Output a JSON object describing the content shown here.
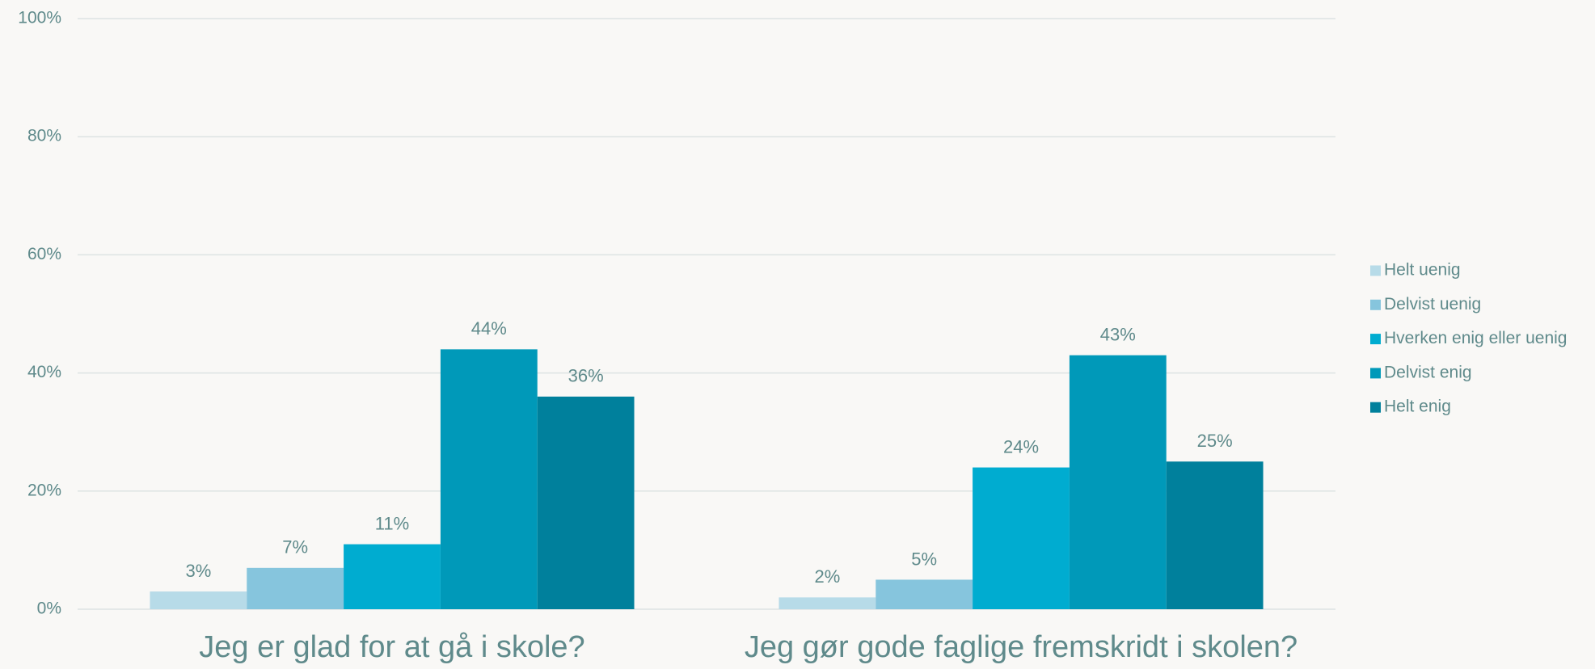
{
  "chart_data": {
    "type": "bar",
    "categories": [
      "Jeg er glad for at gå i skole?",
      "Jeg gør gode faglige fremskridt i skolen?"
    ],
    "series": [
      {
        "name": "Helt uenig",
        "color": "#b7dbe8",
        "values": [
          3,
          2
        ],
        "value_labels": [
          "3%",
          "2%"
        ]
      },
      {
        "name": "Delvist uenig",
        "color": "#86c5dd",
        "values": [
          7,
          5
        ],
        "value_labels": [
          "7%",
          "5%"
        ]
      },
      {
        "name": "Hverken enig eller uenig",
        "color": "#00acd0",
        "values": [
          11,
          24
        ],
        "value_labels": [
          "11%",
          "24%"
        ]
      },
      {
        "name": "Delvist enig",
        "color": "#0099b9",
        "values": [
          44,
          43
        ],
        "value_labels": [
          "44%",
          "43%"
        ]
      },
      {
        "name": "Helt enig",
        "color": "#00809c",
        "values": [
          36,
          25
        ],
        "value_labels": [
          "36%",
          "25%"
        ]
      }
    ],
    "ylim": [
      0,
      100
    ],
    "yticks": [
      {
        "value": 0,
        "label": "0%"
      },
      {
        "value": 20,
        "label": "20%"
      },
      {
        "value": 40,
        "label": "40%"
      },
      {
        "value": 60,
        "label": "60%"
      },
      {
        "value": 80,
        "label": "80%"
      },
      {
        "value": 100,
        "label": "100%"
      }
    ],
    "grid": true,
    "legend": "right"
  }
}
